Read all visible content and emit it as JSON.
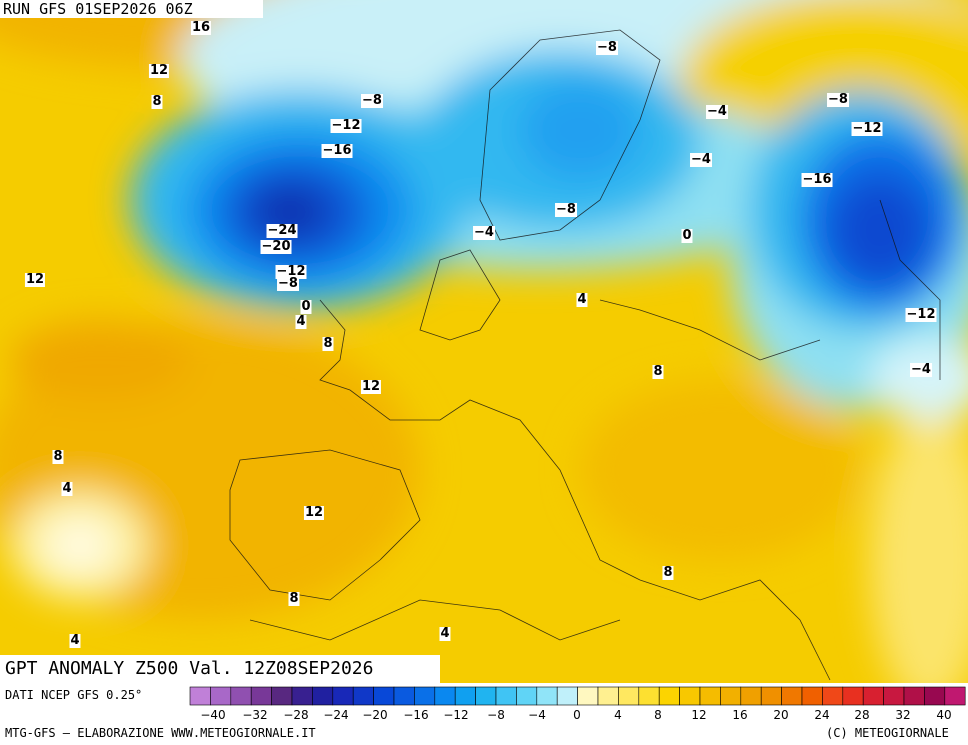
{
  "header": {
    "run": "RUN GFS 01SEP2026 06Z"
  },
  "title": "GPT ANOMALY Z500 Val. 12Z08SEP2026",
  "footer": {
    "source": "DATI NCEP GFS 0.25°",
    "credit": "MTG-GFS — ELABORAZIONE WWW.METEOGIORNALE.IT",
    "copyright": "(C) METEOGIORNALE"
  },
  "legend": {
    "ticks": [
      "−40",
      "−32",
      "−28",
      "−24",
      "−20",
      "−16",
      "−12",
      "−8",
      "−4",
      "0",
      "4",
      "8",
      "12",
      "16",
      "20",
      "24",
      "28",
      "32",
      "40"
    ]
  },
  "contour_labels": [
    "16",
    "12",
    "8",
    "−8",
    "−12",
    "−16",
    "−24",
    "−20",
    "−12",
    "−8",
    "0",
    "4",
    "8",
    "12",
    "12",
    "8",
    "4",
    "12",
    "8",
    "4",
    "4",
    "8",
    "8",
    "4",
    "0",
    "−4",
    "−8",
    "−8",
    "−4",
    "−4",
    "−8",
    "−12",
    "−16",
    "−12",
    "−4"
  ]
}
